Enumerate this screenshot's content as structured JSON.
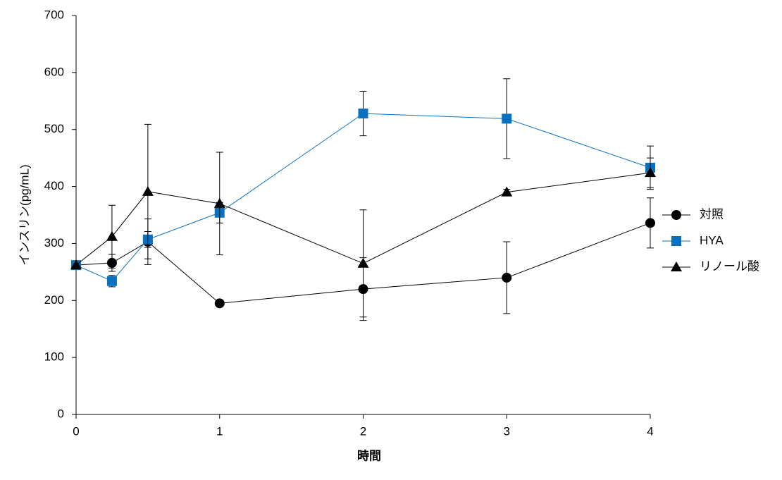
{
  "chart_data": {
    "type": "line",
    "x_label": "時間",
    "y_label": "インスリン(pg/mL)",
    "x": [
      0,
      0.25,
      0.5,
      1,
      2,
      3,
      4
    ],
    "xlim": [
      0,
      4
    ],
    "xticks": [
      0,
      1,
      2,
      3,
      4
    ],
    "ylim": [
      0,
      700
    ],
    "yticks": [
      0,
      100,
      200,
      300,
      400,
      500,
      600,
      700
    ],
    "grid": false,
    "legend": "right",
    "series": [
      {
        "name": "対照",
        "color": "#000000",
        "marker": "circle",
        "values": [
          262,
          266,
          303,
          195,
          220,
          240,
          336
        ],
        "errors": [
          0,
          15,
          40,
          0,
          55,
          63,
          44
        ]
      },
      {
        "name": "HYA",
        "color": "#0a70c0",
        "marker": "square",
        "values": [
          262,
          234,
          307,
          354,
          528,
          519,
          433
        ],
        "errors": [
          0,
          10,
          14,
          18,
          39,
          70,
          38
        ]
      },
      {
        "name": "リノール酸",
        "color": "#000000",
        "marker": "triangle",
        "values": [
          262,
          312,
          391,
          370,
          265,
          390,
          424
        ],
        "errors": [
          0,
          55,
          118,
          90,
          94,
          5,
          26
        ]
      }
    ]
  }
}
